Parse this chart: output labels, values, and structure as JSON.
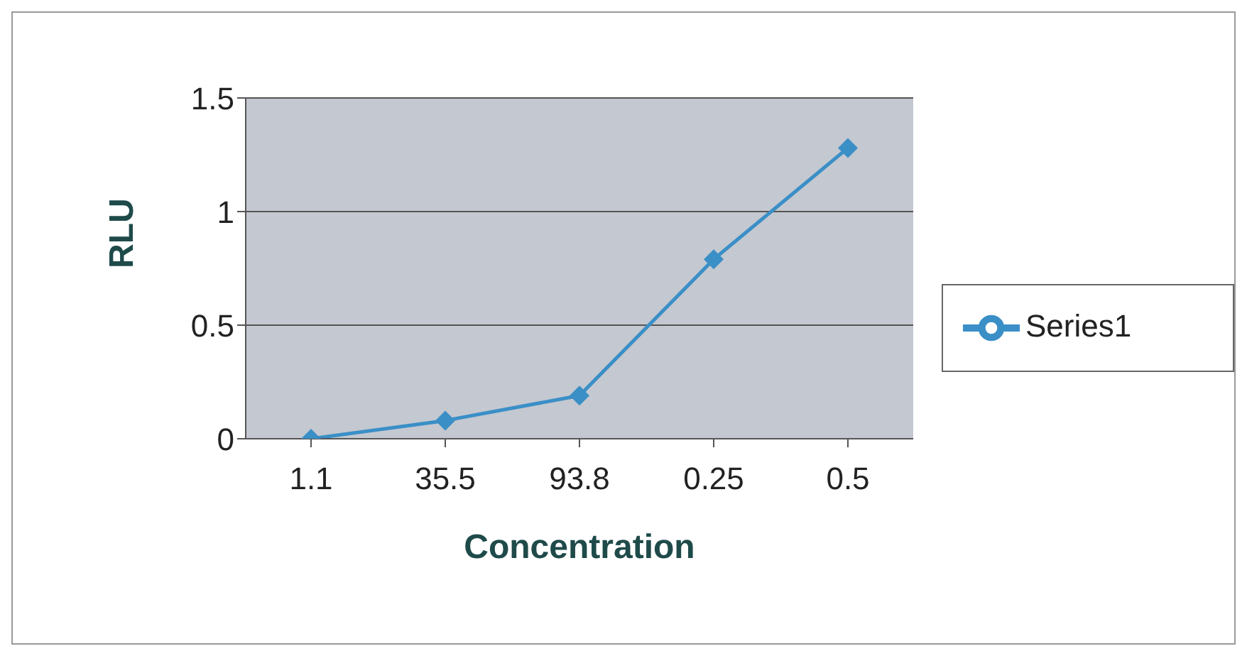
{
  "chart_data": {
    "type": "line",
    "xlabel": "Concentration",
    "ylabel": "RLU",
    "categories": [
      "1.1",
      "35.5",
      "93.8",
      "0.25",
      "0.5"
    ],
    "series": [
      {
        "name": "Series1",
        "color": "#3a8fc7",
        "values": [
          0,
          0.08,
          0.19,
          0.79,
          1.28
        ]
      }
    ],
    "ylim": [
      0,
      1.5
    ],
    "yticks": [
      0,
      0.5,
      1,
      1.5
    ],
    "grid": "y",
    "legend": "right",
    "marker": "diamond",
    "line_style": "solid"
  }
}
